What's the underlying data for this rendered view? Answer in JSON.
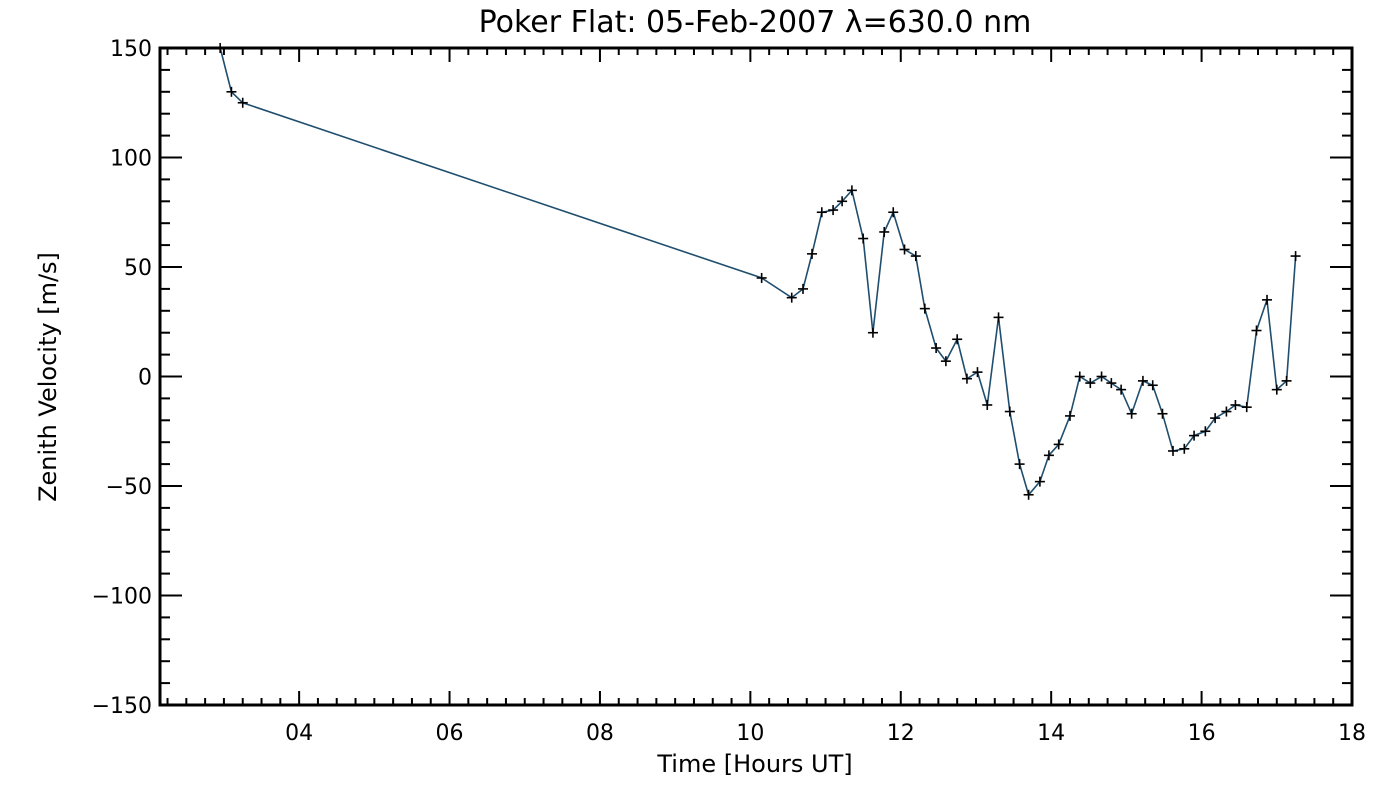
{
  "chart_data": {
    "type": "line",
    "title": "Poker Flat: 05-Feb-2007 λ=630.0 nm",
    "xlabel": "Time [Hours UT]",
    "ylabel": "Zenith Velocity [m/s]",
    "xlim": [
      2.15,
      18.0
    ],
    "ylim": [
      -150,
      150
    ],
    "x_ticks": [
      4,
      6,
      8,
      10,
      12,
      14,
      16,
      18
    ],
    "x_tick_labels": [
      "04",
      "06",
      "08",
      "10",
      "12",
      "14",
      "16",
      "18"
    ],
    "y_ticks": [
      150,
      100,
      50,
      0,
      -50,
      -100,
      -150
    ],
    "y_tick_labels": [
      "150",
      "100",
      "50",
      "0",
      "−50",
      "−100",
      "−150"
    ],
    "marker": "plus",
    "line_color": "#1f4e6e",
    "marker_color": "#000000",
    "series": [
      {
        "name": "Zenith Velocity",
        "x": [
          2.95,
          3.1,
          3.25,
          10.15,
          10.55,
          10.7,
          10.82,
          10.95,
          11.1,
          11.22,
          11.35,
          11.5,
          11.63,
          11.78,
          11.9,
          12.05,
          12.2,
          12.32,
          12.47,
          12.6,
          12.75,
          12.88,
          13.02,
          13.15,
          13.3,
          13.45,
          13.58,
          13.7,
          13.85,
          13.97,
          14.1,
          14.25,
          14.38,
          14.52,
          14.67,
          14.8,
          14.93,
          15.07,
          15.22,
          15.35,
          15.48,
          15.62,
          15.77,
          15.9,
          16.05,
          16.18,
          16.33,
          16.45,
          16.6,
          16.73,
          16.87,
          17.0,
          17.13,
          17.25
        ],
        "y": [
          150,
          130,
          125,
          45,
          36,
          40,
          56,
          75,
          76,
          80,
          85,
          63,
          20,
          66,
          75,
          58,
          55,
          31,
          13,
          7,
          17,
          -1,
          2,
          -13,
          27,
          -16,
          -40,
          -54,
          -48,
          -36,
          -31,
          -18,
          0,
          -3,
          0,
          -3,
          -6,
          -17,
          -2,
          -4,
          -17,
          -34,
          -33,
          -27,
          -25,
          -19,
          -16,
          -13,
          -14,
          21,
          35,
          -6,
          -2,
          55
        ]
      }
    ]
  }
}
